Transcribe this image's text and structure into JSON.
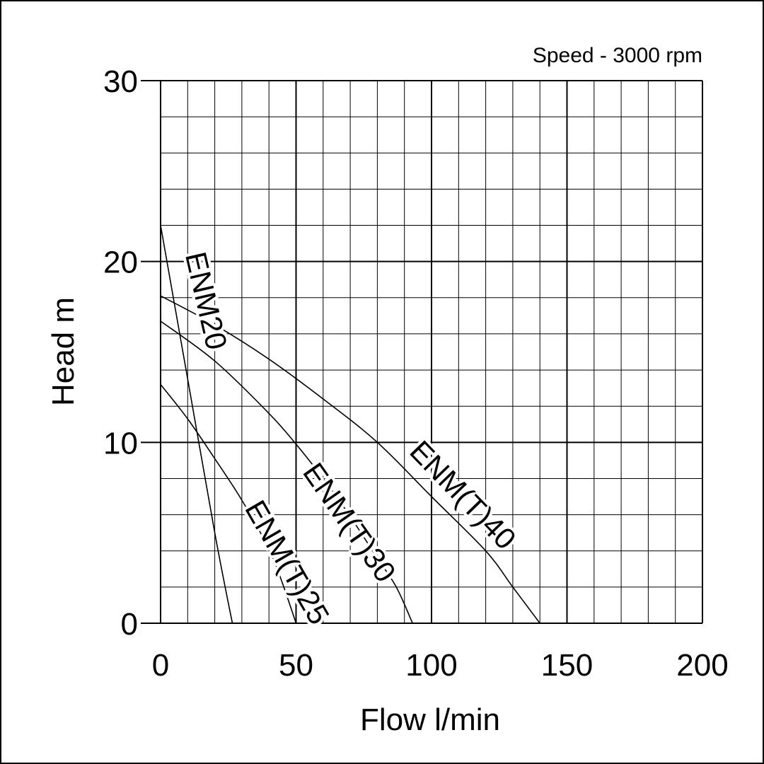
{
  "chart_data": {
    "type": "line",
    "title": "",
    "annotation": "Speed - 3000 rpm",
    "xlabel": "Flow l/min",
    "ylabel": "Head m",
    "xlim": [
      0,
      200
    ],
    "ylim": [
      0,
      30
    ],
    "xticks": [
      "0",
      "50",
      "100",
      "150",
      "200"
    ],
    "yticks": [
      "0",
      "10",
      "20",
      "30"
    ],
    "grid": true,
    "legend": "none",
    "series": [
      {
        "name": "ENM20",
        "x": [
          0,
          10,
          20,
          26.5
        ],
        "y": [
          22,
          13.5,
          5,
          0
        ]
      },
      {
        "name": "ENM(T)25",
        "x": [
          0,
          10,
          20,
          30,
          40,
          45,
          50
        ],
        "y": [
          13.2,
          11.3,
          9.1,
          6.8,
          4.1,
          2.2,
          0
        ]
      },
      {
        "name": "ENM(T)30",
        "x": [
          0,
          20,
          40,
          50,
          60,
          70,
          80,
          87,
          93
        ],
        "y": [
          16.7,
          14.5,
          11.6,
          9.9,
          8.0,
          5.9,
          3.6,
          2.0,
          0
        ]
      },
      {
        "name": "ENM(T)40",
        "x": [
          0,
          20,
          40,
          60,
          80,
          100,
          120,
          130,
          140
        ],
        "y": [
          18.1,
          16.5,
          14.6,
          12.4,
          10.0,
          7.0,
          4.0,
          2.0,
          0
        ]
      }
    ]
  }
}
